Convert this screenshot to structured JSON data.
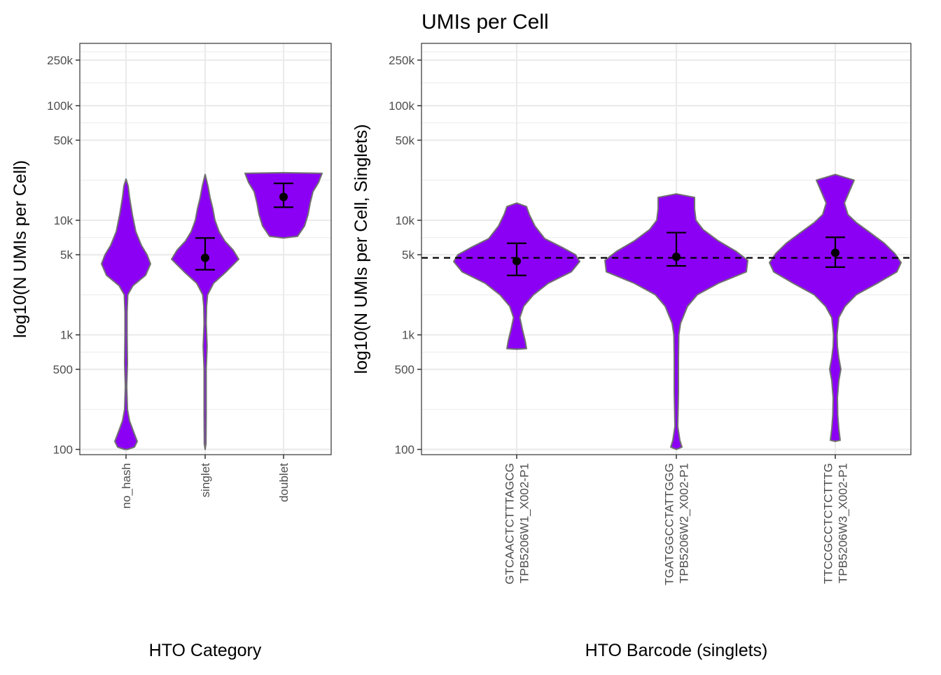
{
  "title": "UMIs per Cell",
  "colors": {
    "fill": "#8B00F5",
    "outline": "#707070",
    "grid": "#EBEBEB",
    "panel_border": "#333333",
    "point": "#000000"
  },
  "chart_data": [
    {
      "type": "violin",
      "xlabel": "HTO Category",
      "ylabel": "log10(N UMIs per Cell)",
      "y_scale": "log10",
      "ylim": [
        90,
        350000
      ],
      "y_ticks": [
        100,
        500,
        1000,
        5000,
        10000,
        50000,
        100000,
        250000
      ],
      "y_tick_labels": [
        "100",
        "500",
        "1k",
        "5k",
        "10k",
        "50k",
        "100k",
        "250k"
      ],
      "grid": true,
      "categories": [
        "no_hash",
        "singlet",
        "doublet"
      ],
      "stats": [
        {
          "mean": null,
          "lower": null,
          "upper": null,
          "min": 100,
          "max": 23000
        },
        {
          "mean": 4700,
          "lower": 3700,
          "upper": 7000,
          "min": 100,
          "max": 25000
        },
        {
          "mean": 16000,
          "lower": 13000,
          "upper": 21000,
          "min": 7000,
          "max": 26000
        }
      ]
    },
    {
      "type": "violin",
      "xlabel": "HTO Barcode (singlets)",
      "ylabel": "log10(N UMIs per Cell, Singlets)",
      "y_scale": "log10",
      "ylim": [
        90,
        350000
      ],
      "y_ticks": [
        100,
        500,
        1000,
        5000,
        10000,
        50000,
        100000,
        250000
      ],
      "y_tick_labels": [
        "100",
        "500",
        "1k",
        "5k",
        "10k",
        "50k",
        "100k",
        "250k"
      ],
      "grid": true,
      "categories": [
        [
          "GTCAACTCTTTAGCG",
          "TPB5206W1_X002-P1"
        ],
        [
          "TGATGGCCTATTGGG",
          "TPB5206W2_X002-P1"
        ],
        [
          "TTCCGCCTCTCTTTG",
          "TPB5206W3_X002-P1"
        ]
      ],
      "stats": [
        {
          "mean": 4400,
          "lower": 3300,
          "upper": 6300,
          "min": 750,
          "max": 14000
        },
        {
          "mean": 4800,
          "lower": 4000,
          "upper": 7800,
          "min": 100,
          "max": 17000
        },
        {
          "mean": 5200,
          "lower": 3900,
          "upper": 7100,
          "min": 120,
          "max": 25000
        }
      ],
      "reference_line": {
        "y": 4700,
        "style": "dashed"
      }
    }
  ]
}
